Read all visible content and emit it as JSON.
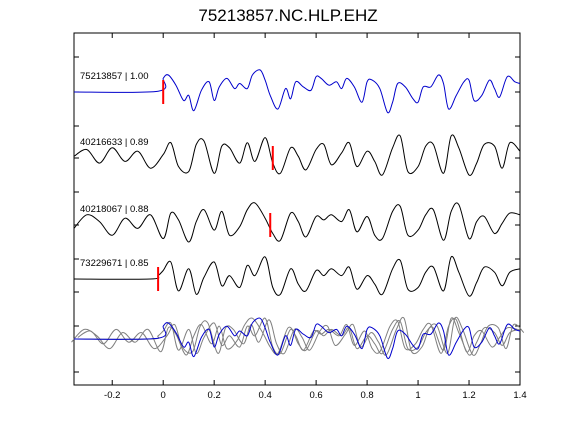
{
  "title": "75213857.NC.HLP.EHZ",
  "chart_data": {
    "type": "line",
    "title": "75213857.NC.HLP.EHZ",
    "xlabel": "",
    "ylabel": "",
    "xlim": [
      -0.35,
      1.4
    ],
    "xticks": [
      -0.2,
      0,
      0.2,
      0.4,
      0.6,
      0.8,
      1,
      1.2,
      1.4
    ],
    "xtick_labels": [
      "-0.2",
      "0",
      "0.2",
      "0.4",
      "0.6",
      "0.8",
      "1",
      "1.2",
      "1.4"
    ],
    "grid": false,
    "legend": "none",
    "colors": {
      "reference": "#0000cc",
      "other": "#000000",
      "pick": "#ff0000",
      "stack_gray": "#808080"
    },
    "series": [
      {
        "label": "75213857 | 1.00",
        "pick_x": 0.0,
        "onset_x": -0.02,
        "color": "#0000cc",
        "x": [
          -0.35,
          -0.02,
          0.0,
          0.02,
          0.05,
          0.08,
          0.1,
          0.12,
          0.15,
          0.18,
          0.2,
          0.22,
          0.25,
          0.28,
          0.3,
          0.33,
          0.35,
          0.38,
          0.4,
          0.42,
          0.45,
          0.48,
          0.5,
          0.52,
          0.55,
          0.58,
          0.6,
          0.62,
          0.65,
          0.68,
          0.7,
          0.72,
          0.75,
          0.78,
          0.8,
          0.82,
          0.85,
          0.88,
          0.9,
          0.92,
          0.95,
          0.98,
          1.0,
          1.02,
          1.05,
          1.08,
          1.1,
          1.12,
          1.15,
          1.18,
          1.2,
          1.22,
          1.25,
          1.28,
          1.3,
          1.32,
          1.35,
          1.38,
          1.4
        ],
        "y": [
          0,
          0.05,
          0.8,
          1.0,
          0.4,
          -0.5,
          -0.2,
          -1.1,
          0.1,
          0.6,
          -0.5,
          0.3,
          0.8,
          0.2,
          0.5,
          0.2,
          1.0,
          1.3,
          0.7,
          -0.2,
          -1.0,
          0.2,
          -0.4,
          0.6,
          0.3,
          0.1,
          0.9,
          0.8,
          0.4,
          0.6,
          0.2,
          0.8,
          0.3,
          -0.6,
          0.6,
          0.7,
          0.2,
          -1.2,
          -0.6,
          0.5,
          0.3,
          -0.4,
          -0.6,
          0.3,
          0.3,
          1.0,
          0.5,
          -1.0,
          -0.2,
          0.6,
          0.7,
          -0.5,
          -0.2,
          0.7,
          0.2,
          -0.3,
          0.9,
          0.6,
          0.5
        ]
      },
      {
        "label": "40216633 | 0.89",
        "pick_x": 0.43,
        "onset_x": -0.35,
        "color": "#000000",
        "x": [
          -0.35,
          -0.3,
          -0.25,
          -0.2,
          -0.15,
          -0.1,
          -0.05,
          0.0,
          0.03,
          0.06,
          0.1,
          0.13,
          0.16,
          0.2,
          0.23,
          0.26,
          0.3,
          0.33,
          0.36,
          0.4,
          0.43,
          0.46,
          0.5,
          0.53,
          0.56,
          0.6,
          0.63,
          0.66,
          0.7,
          0.73,
          0.76,
          0.8,
          0.83,
          0.86,
          0.9,
          0.93,
          0.96,
          1.0,
          1.03,
          1.06,
          1.1,
          1.13,
          1.16,
          1.2,
          1.23,
          1.26,
          1.3,
          1.33,
          1.36,
          1.4
        ],
        "y": [
          0.1,
          0.5,
          -0.3,
          0.6,
          -0.2,
          0.4,
          -0.6,
          0.2,
          0.9,
          -0.5,
          -0.8,
          0.8,
          1.0,
          -0.9,
          0.7,
          0.6,
          -0.3,
          0.9,
          -0.2,
          1.2,
          -0.3,
          -0.9,
          0.6,
          0.1,
          -0.7,
          0.5,
          0.8,
          -0.4,
          0.3,
          0.9,
          -0.5,
          0.4,
          -0.2,
          -1.0,
          0.6,
          1.3,
          -0.8,
          -0.5,
          0.7,
          0.8,
          -0.9,
          1.3,
          0.6,
          -1.0,
          -0.3,
          0.8,
          0.7,
          -0.6,
          0.9,
          0.4
        ]
      },
      {
        "label": "40218067 | 0.88",
        "pick_x": 0.42,
        "onset_x": -0.35,
        "color": "#000000",
        "x": [
          -0.35,
          -0.3,
          -0.25,
          -0.2,
          -0.15,
          -0.1,
          -0.05,
          0.0,
          0.03,
          0.06,
          0.1,
          0.13,
          0.16,
          0.2,
          0.23,
          0.26,
          0.3,
          0.33,
          0.36,
          0.4,
          0.43,
          0.46,
          0.5,
          0.53,
          0.56,
          0.6,
          0.63,
          0.66,
          0.7,
          0.73,
          0.76,
          0.8,
          0.83,
          0.86,
          0.9,
          0.93,
          0.96,
          1.0,
          1.03,
          1.06,
          1.1,
          1.13,
          1.16,
          1.2,
          1.23,
          1.26,
          1.3,
          1.33,
          1.36,
          1.4
        ],
        "y": [
          -0.2,
          0.6,
          0.2,
          -0.6,
          0.4,
          -0.2,
          0.6,
          -0.8,
          0.7,
          0.3,
          -1.0,
          0.2,
          0.9,
          -0.3,
          0.8,
          -0.6,
          -0.1,
          0.9,
          1.3,
          0.4,
          -0.5,
          -0.9,
          0.7,
          0.2,
          -0.7,
          0.5,
          0.3,
          0.6,
          0.2,
          0.9,
          -0.4,
          0.5,
          -0.6,
          -0.8,
          0.8,
          1.1,
          -0.6,
          -0.3,
          0.6,
          0.9,
          -0.9,
          0.8,
          1.2,
          -0.8,
          0.2,
          0.5,
          -0.5,
          0.1,
          0.7,
          0.6
        ]
      },
      {
        "label": "73229671 | 0.85",
        "pick_x": -0.02,
        "onset_x": -0.05,
        "color": "#000000",
        "x": [
          -0.35,
          -0.05,
          -0.02,
          0.0,
          0.03,
          0.06,
          0.1,
          0.13,
          0.16,
          0.2,
          0.23,
          0.26,
          0.3,
          0.33,
          0.36,
          0.4,
          0.43,
          0.46,
          0.5,
          0.53,
          0.56,
          0.6,
          0.63,
          0.66,
          0.7,
          0.73,
          0.76,
          0.8,
          0.83,
          0.86,
          0.9,
          0.93,
          0.96,
          1.0,
          1.03,
          1.06,
          1.1,
          1.13,
          1.16,
          1.2,
          1.23,
          1.26,
          1.3,
          1.33,
          1.36,
          1.4
        ],
        "y": [
          0,
          0,
          0.2,
          0.5,
          1.0,
          -0.7,
          0.6,
          -0.9,
          0.1,
          1.0,
          -0.4,
          0.2,
          -0.5,
          0.8,
          0.2,
          1.3,
          -0.5,
          -0.9,
          0.6,
          -0.3,
          -0.7,
          0.5,
          0.2,
          0.6,
          0.2,
          0.7,
          -0.6,
          0.2,
          -0.3,
          -0.9,
          0.6,
          1.1,
          -0.6,
          -0.5,
          0.4,
          0.7,
          -0.7,
          1.3,
          0.4,
          -1.0,
          -0.2,
          0.7,
          0.4,
          -0.4,
          0.4,
          0.6
        ]
      }
    ]
  }
}
